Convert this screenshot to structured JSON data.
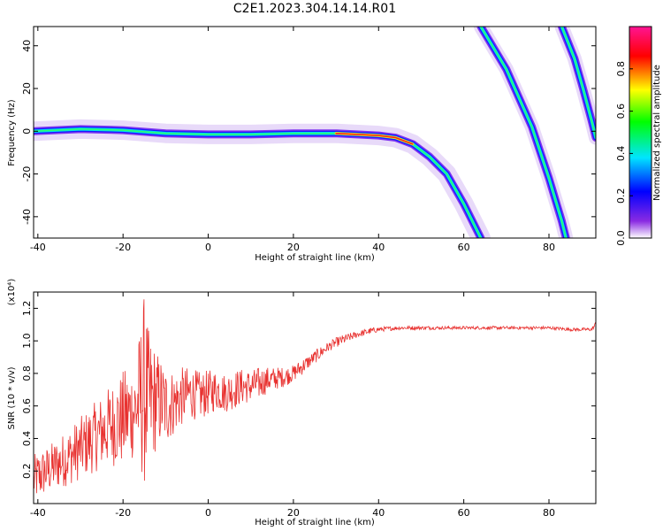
{
  "title": "C2E1.2023.304.14.14.R01",
  "chart_data": [
    {
      "type": "heatmap",
      "xlabel": "Height of straight line (km)",
      "ylabel": "Frequency (Hz)",
      "xlim": [
        -41,
        91
      ],
      "ylim": [
        -50,
        49
      ],
      "xticks": [
        "-40",
        "-20",
        "0",
        "20",
        "40",
        "60",
        "80"
      ],
      "xtick_values": [
        -40,
        -20,
        0,
        20,
        40,
        60,
        80
      ],
      "yticks": [
        "-40",
        "-20",
        "0",
        "20",
        "40"
      ],
      "ytick_values": [
        -40,
        -20,
        0,
        20,
        40
      ],
      "grid": false,
      "colorbar": {
        "label": "Normalized spectral amplitude",
        "ticks": [
          "0.0",
          "0.2",
          "0.4",
          "0.6",
          "0.8"
        ],
        "tick_values": [
          0,
          0.2,
          0.4,
          0.6,
          0.8
        ],
        "range": [
          0,
          1
        ],
        "colors": [
          "#ffffff",
          "#8a2be2",
          "#0000ff",
          "#00e5ff",
          "#00ff00",
          "#ffff00",
          "#ff0000",
          "#ff1493"
        ]
      },
      "traces": [
        {
          "description": "main return",
          "points": [
            [
              -41,
              0
            ],
            [
              -30,
              1
            ],
            [
              -20,
              0.5
            ],
            [
              -10,
              -1
            ],
            [
              0,
              -1.5
            ],
            [
              10,
              -1.5
            ],
            [
              20,
              -1
            ],
            [
              30,
              -1
            ],
            [
              40,
              -2
            ],
            [
              44,
              -3
            ],
            [
              48,
              -6
            ],
            [
              52,
              -12
            ],
            [
              56,
              -20
            ],
            [
              60,
              -34
            ],
            [
              63,
              -46
            ],
            [
              64,
              -50
            ]
          ]
        },
        {
          "description": "oblique track 1",
          "points": [
            [
              64,
              49
            ],
            [
              70,
              29
            ],
            [
              76,
              2
            ],
            [
              80,
              -22
            ],
            [
              83,
              -42
            ],
            [
              84,
              -50
            ]
          ]
        },
        {
          "description": "oblique track 2",
          "points": [
            [
              83,
              49
            ],
            [
              86,
              34
            ],
            [
              88,
              20
            ],
            [
              90,
              5
            ],
            [
              91,
              -3
            ]
          ]
        }
      ]
    },
    {
      "type": "line",
      "xlabel": "Height of straight line (km)",
      "ylabel": "SNR (10 * v/v)",
      "yscale_label": "(x10⁴)",
      "xlim": [
        -41,
        91
      ],
      "ylim": [
        0,
        1.3
      ],
      "xticks": [
        "-40",
        "-20",
        "0",
        "20",
        "40",
        "60",
        "80"
      ],
      "xtick_values": [
        -40,
        -20,
        0,
        20,
        40,
        60,
        80
      ],
      "yticks": [
        "0.2",
        "0.4",
        "0.6",
        "0.8",
        "1.0",
        "1.2"
      ],
      "ytick_values": [
        0.2,
        0.4,
        0.6,
        0.8,
        1.0,
        1.2
      ],
      "grid": false,
      "series": [
        {
          "color": "#e8312f",
          "x": [
            -41,
            -38,
            -35,
            -32,
            -29,
            -26,
            -23,
            -20,
            -17,
            -15,
            -14,
            -12,
            -10,
            -8,
            -6,
            -4,
            -2,
            0,
            2,
            4,
            6,
            8,
            10,
            12,
            14,
            16,
            18,
            20,
            22,
            24,
            26,
            28,
            30,
            32,
            35,
            38,
            40,
            45,
            50,
            55,
            60,
            65,
            70,
            75,
            80,
            85,
            90,
            91
          ],
          "y": [
            0.15,
            0.2,
            0.25,
            0.3,
            0.36,
            0.42,
            0.48,
            0.52,
            0.58,
            0.7,
            0.62,
            0.64,
            0.6,
            0.62,
            0.66,
            0.68,
            0.66,
            0.68,
            0.7,
            0.68,
            0.7,
            0.72,
            0.72,
            0.74,
            0.76,
            0.77,
            0.78,
            0.8,
            0.84,
            0.88,
            0.92,
            0.96,
            0.99,
            1.01,
            1.04,
            1.06,
            1.07,
            1.08,
            1.08,
            1.08,
            1.08,
            1.08,
            1.08,
            1.08,
            1.08,
            1.07,
            1.07,
            1.1
          ],
          "amplitude": [
            0.15,
            0.15,
            0.16,
            0.18,
            0.2,
            0.22,
            0.25,
            0.3,
            0.3,
            0.6,
            0.45,
            0.3,
            0.25,
            0.2,
            0.18,
            0.16,
            0.15,
            0.14,
            0.13,
            0.12,
            0.12,
            0.11,
            0.1,
            0.1,
            0.08,
            0.07,
            0.06,
            0.05,
            0.05,
            0.04,
            0.04,
            0.03,
            0.03,
            0.03,
            0.02,
            0.02,
            0.015,
            0.012,
            0.012,
            0.01,
            0.01,
            0.01,
            0.01,
            0.01,
            0.01,
            0.01,
            0.01,
            0.02
          ]
        }
      ]
    }
  ]
}
